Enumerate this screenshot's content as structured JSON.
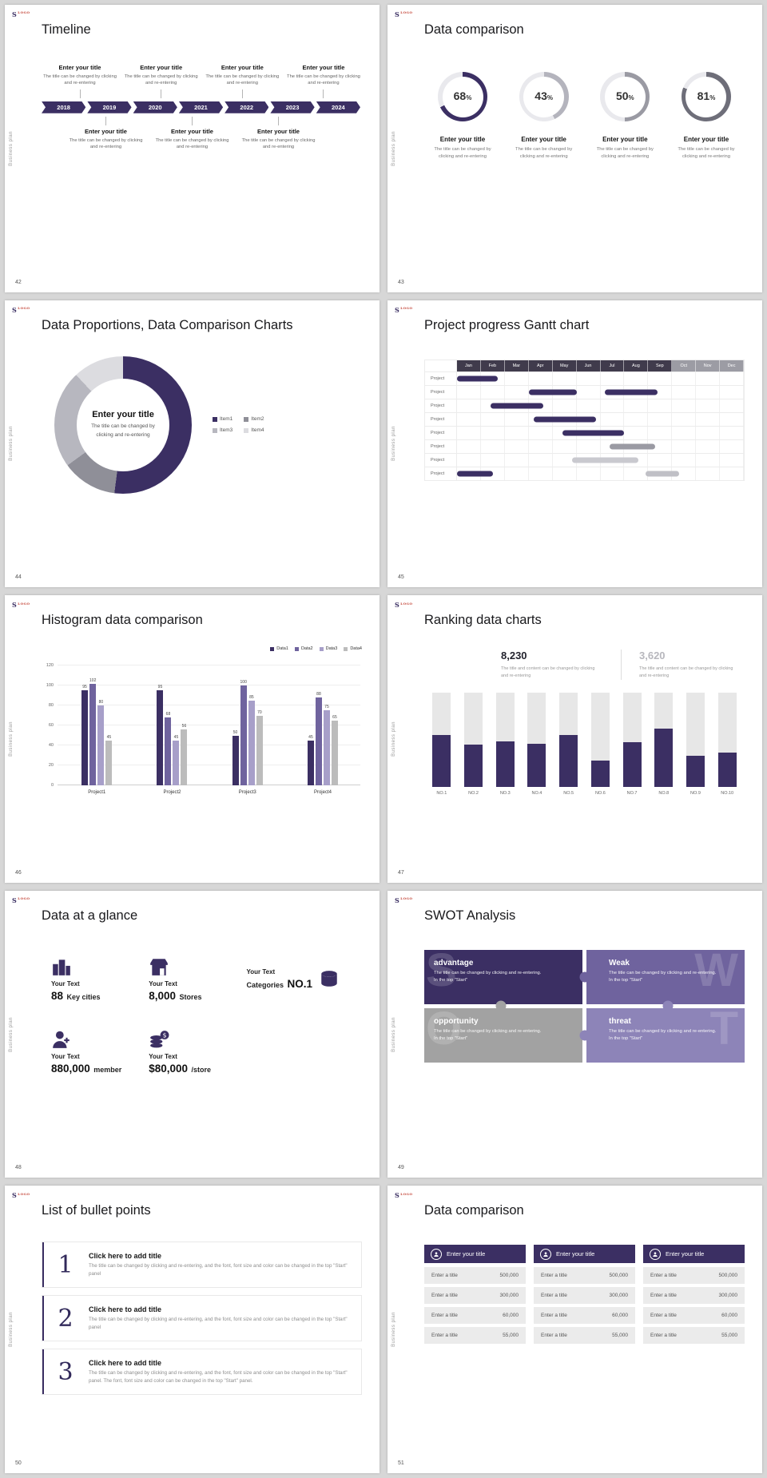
{
  "common": {
    "logo_main": "S",
    "logo_accent": "LOGO",
    "sidebar_label": "Business plan",
    "accent_color": "#3b2f63"
  },
  "slide42": {
    "page": "42",
    "title": "Timeline",
    "entry_title": "Enter your title",
    "entry_desc": "The title can be changed by clicking and re-entering",
    "years": [
      "2018",
      "2019",
      "2020",
      "2021",
      "2022",
      "2023",
      "2024"
    ],
    "top_entries": 4,
    "bottom_entries": 3
  },
  "slide43": {
    "page": "43",
    "title": "Data comparison",
    "entry_title": "Enter your title",
    "entry_desc": "The title can be changed by clicking and re-entering",
    "chart_data": {
      "type": "pie",
      "values": [
        68,
        43,
        50,
        81
      ],
      "unit": "%",
      "arc_colors": [
        "#3b2f63",
        "#b4b4bd",
        "#9a9aa3",
        "#6e6e79"
      ],
      "track_color": "#e9e9ed"
    }
  },
  "slide44": {
    "page": "44",
    "title": "Data Proportions, Data Comparison Charts",
    "center_title": "Enter your title",
    "center_desc": "The title can be changed by clicking and re-entering",
    "chart_data": {
      "type": "pie",
      "legend": [
        "Item1",
        "Item2",
        "Item3",
        "Item4"
      ],
      "values": [
        52,
        13,
        23,
        12
      ],
      "colors": [
        "#3b2f63",
        "#8f8f98",
        "#b7b7bf",
        "#dcdce0"
      ]
    }
  },
  "slide45": {
    "page": "45",
    "title": "Project progress Gantt chart",
    "row_label": "Project",
    "chart_data": {
      "type": "gantt",
      "months": [
        "Jan",
        "Feb",
        "Mar",
        "Apr",
        "May",
        "Jun",
        "Jul",
        "Aug",
        "Sep",
        "Oct",
        "Nov",
        "Dec"
      ],
      "dark_header_count": 9,
      "header_colors": [
        "#403b4c",
        "#9c9ca4"
      ],
      "rows": 8,
      "bars": [
        {
          "row": 0,
          "start": 0,
          "span": 1.7,
          "color": "#3b2f63"
        },
        {
          "row": 1,
          "start": 3,
          "span": 2,
          "color": "#3b2f63"
        },
        {
          "row": 1,
          "start": 6.2,
          "span": 2.2,
          "color": "#3b2f63"
        },
        {
          "row": 2,
          "start": 1.4,
          "span": 2.2,
          "color": "#3b2f63"
        },
        {
          "row": 3,
          "start": 3.2,
          "span": 2.6,
          "color": "#3b2f63"
        },
        {
          "row": 4,
          "start": 4.4,
          "span": 2.6,
          "color": "#3b2f63"
        },
        {
          "row": 5,
          "start": 6.4,
          "span": 1.9,
          "color": "#9a9aa3"
        },
        {
          "row": 6,
          "start": 4.8,
          "span": 2.8,
          "color": "#c9c9cf"
        },
        {
          "row": 7,
          "start": 0,
          "span": 1.5,
          "color": "#3b2f63"
        },
        {
          "row": 7,
          "start": 7.9,
          "span": 1.4,
          "color": "#c0c0c6"
        }
      ]
    }
  },
  "slide46": {
    "page": "46",
    "title": "Histogram data comparison",
    "chart_data": {
      "type": "bar",
      "series": [
        "Data1",
        "Data2",
        "Data3",
        "Data4"
      ],
      "colors": [
        "#3b2f63",
        "#6f639e",
        "#a79fc9",
        "#bcbcbc"
      ],
      "categories": [
        "Project1",
        "Project2",
        "Project3",
        "Project4"
      ],
      "values": [
        [
          95,
          102,
          80,
          45
        ],
        [
          95,
          68,
          45,
          56
        ],
        [
          50,
          100,
          85,
          70
        ],
        [
          45,
          88,
          75,
          65
        ]
      ],
      "y_ticks": [
        0,
        20,
        40,
        60,
        80,
        100,
        120
      ],
      "ylim": [
        0,
        120
      ]
    }
  },
  "slide47": {
    "page": "47",
    "title": "Ranking data charts",
    "stat1_value": "8,230",
    "stat2_value": "3,620",
    "stat_desc": "The title and content can be changed by clicking and re-entering",
    "chart_data": {
      "type": "bar",
      "categories": [
        "NO.1",
        "NO.2",
        "NO.3",
        "NO.4",
        "NO.5",
        "NO.6",
        "NO.7",
        "NO.8",
        "NO.9",
        "NO.10"
      ],
      "values": [
        55,
        45,
        48,
        46,
        55,
        28,
        47,
        62,
        33,
        36
      ],
      "max": 100,
      "bar_color": "#3b2f63",
      "track_color": "#e7e7e7"
    }
  },
  "slide48": {
    "page": "48",
    "title": "Data at a glance",
    "label": "Your Text",
    "stats": [
      {
        "icon": "city-icon",
        "big": "88",
        "small": "Key cities"
      },
      {
        "icon": "store-icon",
        "big": "8,000",
        "small": "Stores"
      },
      {
        "icon": "categories-icon",
        "big": "NO.1",
        "small": "Categories"
      },
      {
        "icon": "member-icon",
        "big": "880,000",
        "small": "member"
      },
      {
        "icon": "coins-icon",
        "big": "$80,000",
        "small": "/store"
      }
    ]
  },
  "slide49": {
    "page": "49",
    "title": "SWOT Analysis",
    "pieces": [
      {
        "letter": "S",
        "name": "advantage",
        "desc": "The title can be changed by clicking and re-entering. In the top \"Start\"",
        "color": "#3b2f63"
      },
      {
        "letter": "W",
        "name": "Weak",
        "desc": "The title can be changed by clicking and re-entering. In the top \"Start\"",
        "color": "#6f639e"
      },
      {
        "letter": "O",
        "name": "opportunity",
        "desc": "The title can be changed by clicking and re-entering. In the top \"Start\"",
        "color": "#a2a2a2"
      },
      {
        "letter": "T",
        "name": "threat",
        "desc": "The title can be changed by clicking and re-entering. In the top \"Start\"",
        "color": "#8d84b8"
      }
    ]
  },
  "slide50": {
    "page": "50",
    "title": "List of bullet points",
    "items": [
      {
        "number": "1",
        "title": "Click here to add title",
        "desc": "The title can be changed by clicking and re-entering, and the font, font size and color can be changed in the top \"Start\" panel"
      },
      {
        "number": "2",
        "title": "Click here to add title",
        "desc": "The title can be changed by clicking and re-entering, and the font, font size and color can be changed in the top \"Start\" panel"
      },
      {
        "number": "3",
        "title": "Click here to add title",
        "desc": "The title can be changed by clicking and re-entering, and the font, font size and color can be changed in the top \"Start\" panel. The font, font size and color can be changed in the top \"Start\" panel."
      }
    ]
  },
  "slide51": {
    "page": "51",
    "title": "Data comparison",
    "card_title": "Enter your title",
    "row_label": "Enter a title",
    "values": [
      "500,000",
      "300,000",
      "60,000",
      "55,000"
    ],
    "cards": 3
  }
}
